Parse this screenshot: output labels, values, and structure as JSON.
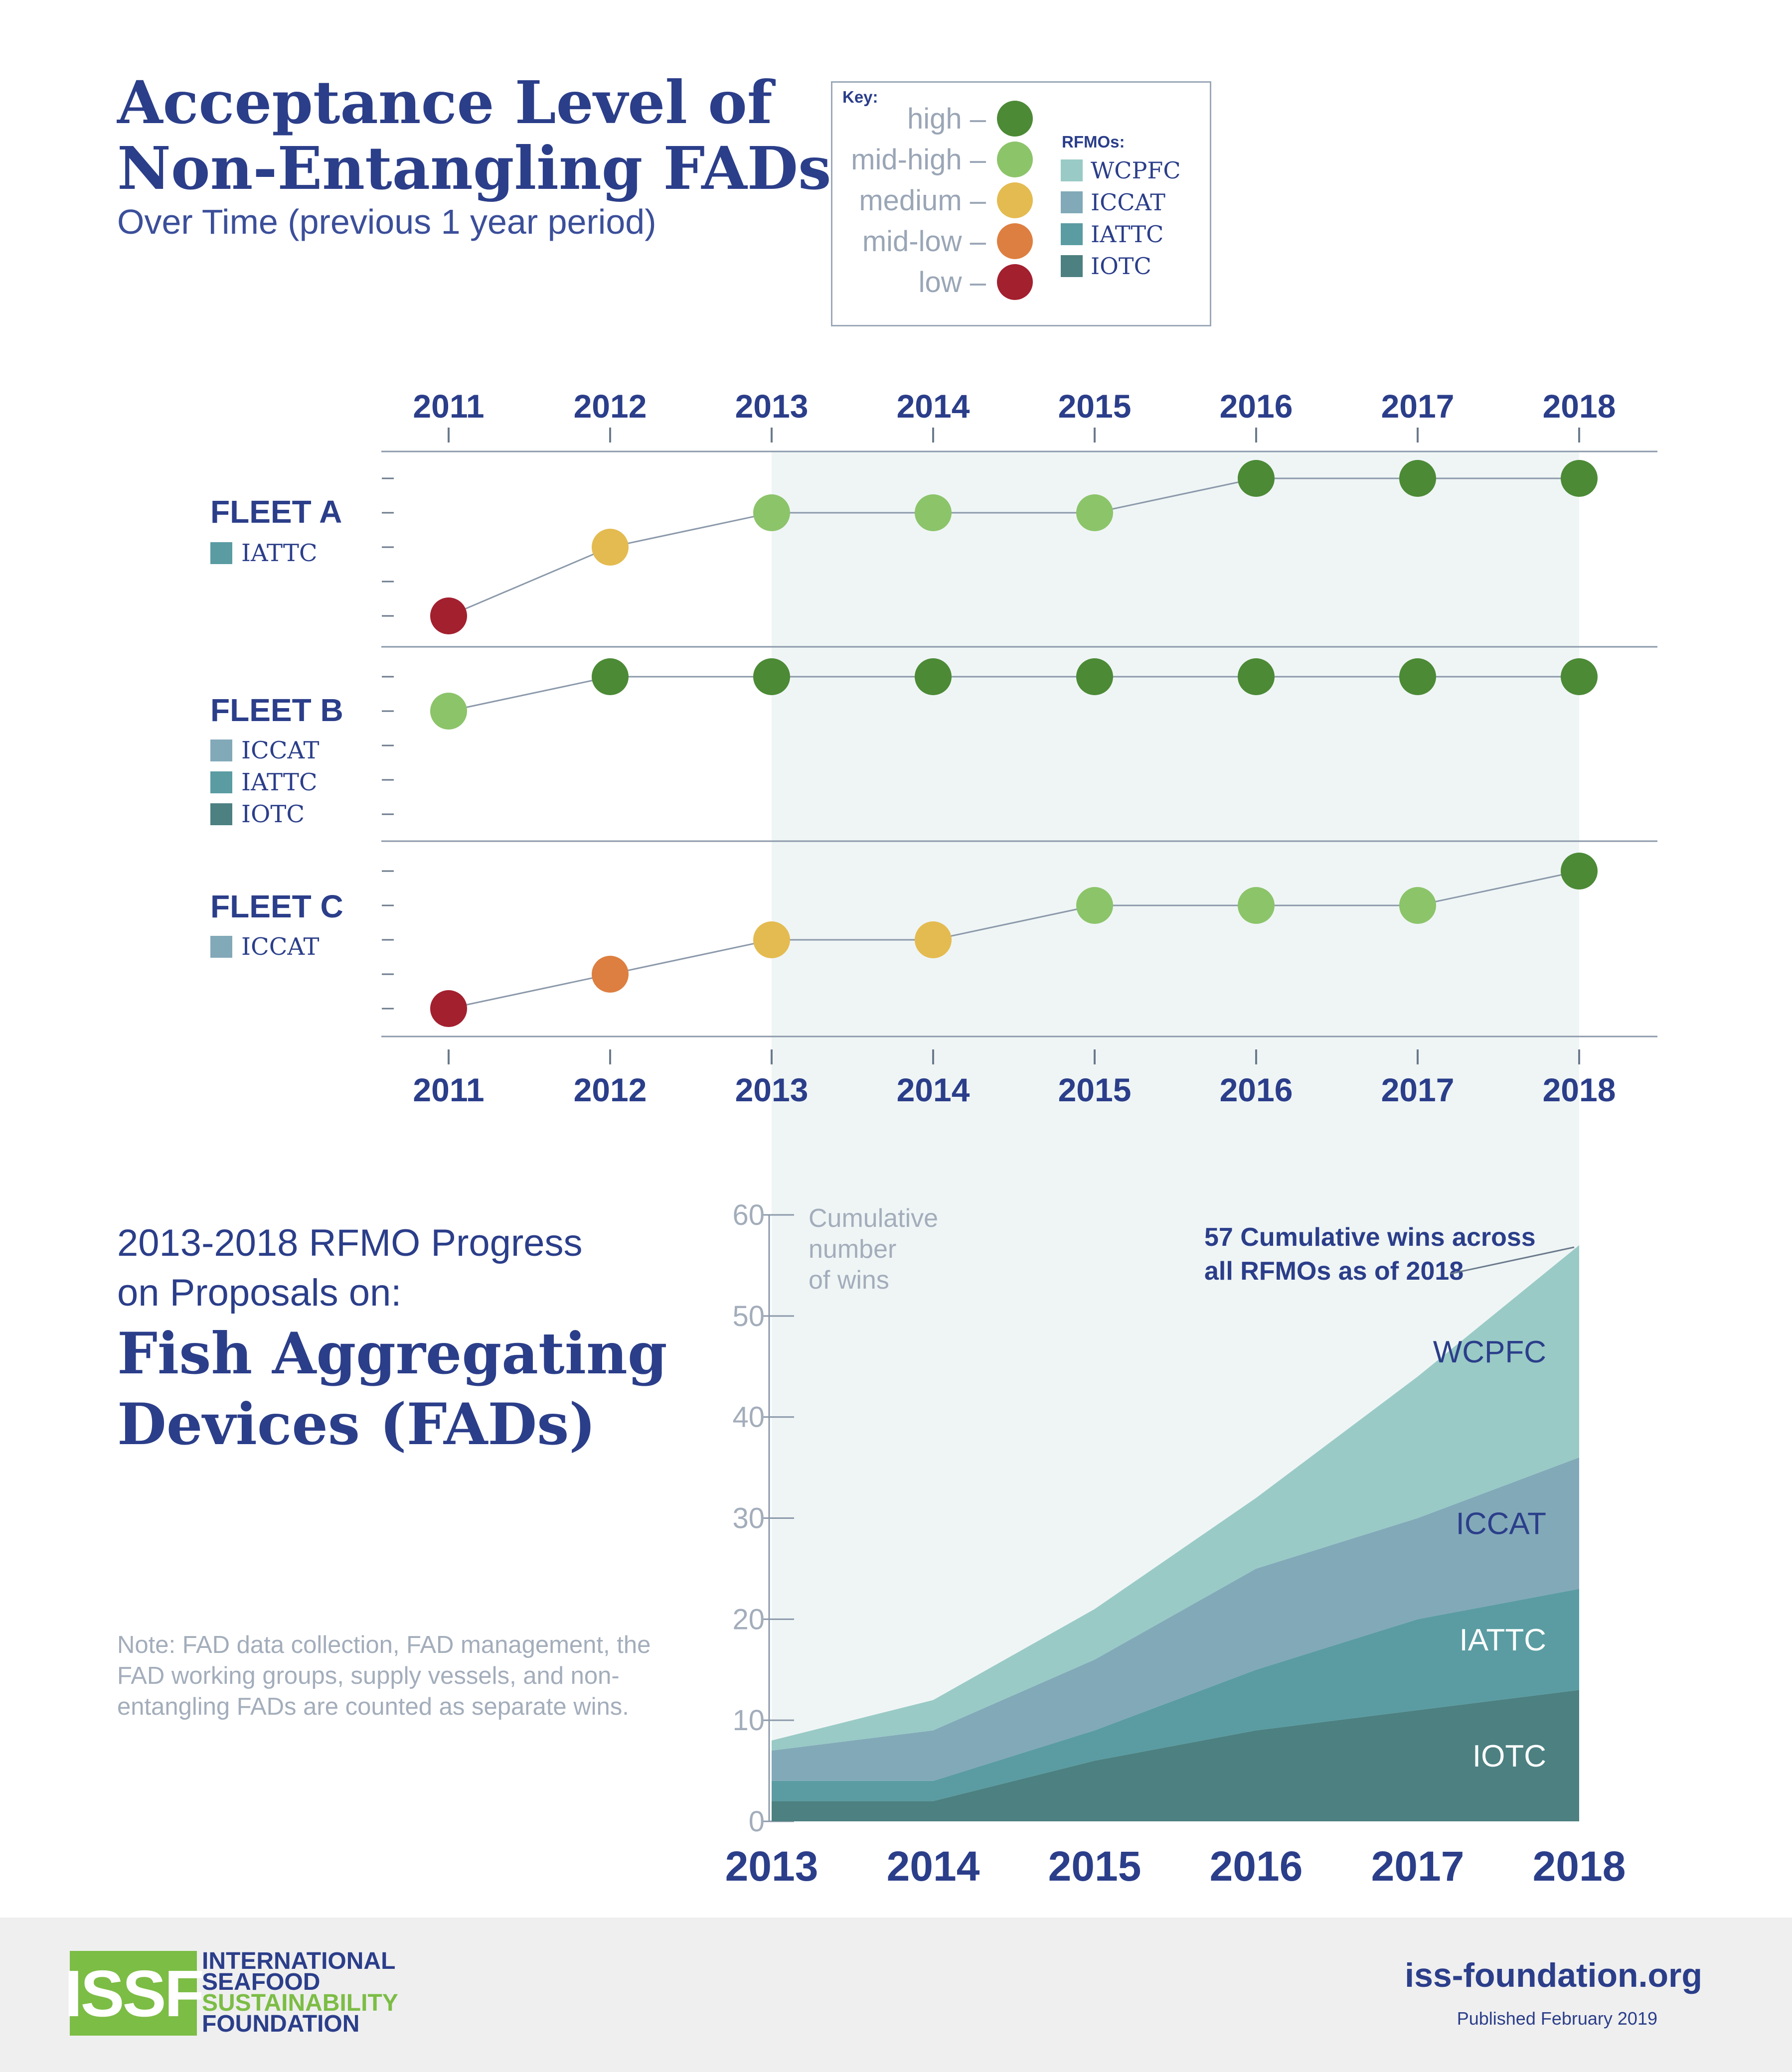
{
  "header": {
    "title_line1": "Acceptance Level of",
    "title_line2": "Non-Entangling FADs",
    "subtitle": "Over Time (previous 1 year period)"
  },
  "key": {
    "title": "Key:",
    "levels": [
      {
        "label": "high –",
        "color": "#4c8a36"
      },
      {
        "label": "mid-high –",
        "color": "#8cc46a"
      },
      {
        "label": "medium –",
        "color": "#e4bb50"
      },
      {
        "label": "mid-low –",
        "color": "#dd7f40"
      },
      {
        "label": "low –",
        "color": "#a3202f"
      }
    ],
    "rfmo_title": "RFMOs:",
    "rfmos": [
      {
        "label": "WCPFC",
        "color": "#99cac6"
      },
      {
        "label": "ICCAT",
        "color": "#82a9b8"
      },
      {
        "label": "IATTC",
        "color": "#5a9ca2"
      },
      {
        "label": "IOTC",
        "color": "#4c8081"
      }
    ]
  },
  "fleets": [
    {
      "name": "FLEET A",
      "rfmos": [
        "IATTC"
      ]
    },
    {
      "name": "FLEET B",
      "rfmos": [
        "ICCAT",
        "IATTC",
        "IOTC"
      ]
    },
    {
      "name": "FLEET C",
      "rfmos": [
        "ICCAT"
      ]
    }
  ],
  "section2": {
    "intro_line1": "2013-2018 RFMO Progress",
    "intro_line2": "on Proposals on:",
    "title_line1": "Fish Aggregating",
    "title_line2": "Devices (FADs)",
    "note": "Note: FAD data collection, FAD management, the FAD working groups, supply vessels, and non-entangling FADs are counted as separate wins."
  },
  "chart_data": [
    {
      "type": "line",
      "x": [
        2011,
        2012,
        2013,
        2014,
        2015,
        2016,
        2017,
        2018
      ],
      "y_levels": [
        "low",
        "mid-low",
        "medium",
        "mid-high",
        "high"
      ],
      "series": [
        {
          "name": "FLEET A",
          "values": [
            "low",
            "medium",
            "mid-high",
            "mid-high",
            "mid-high",
            "high",
            "high",
            "high"
          ]
        },
        {
          "name": "FLEET B",
          "values": [
            "mid-high",
            "high",
            "high",
            "high",
            "high",
            "high",
            "high",
            "high"
          ]
        },
        {
          "name": "FLEET C",
          "values": [
            "low",
            "mid-low",
            "medium",
            "medium",
            "mid-high",
            "mid-high",
            "mid-high",
            "high"
          ]
        }
      ],
      "highlight_range": [
        2013,
        2018
      ]
    },
    {
      "type": "area",
      "stacked": true,
      "x": [
        2013,
        2014,
        2015,
        2016,
        2017,
        2018
      ],
      "ylabel": "Cumulative number of wins",
      "ylim": [
        0,
        60
      ],
      "yticks": [
        0,
        10,
        20,
        30,
        40,
        50,
        60
      ],
      "series": [
        {
          "name": "IOTC",
          "values": [
            2,
            2,
            6,
            9,
            11,
            13
          ],
          "color": "#4c8081"
        },
        {
          "name": "IATTC",
          "values": [
            2,
            2,
            3,
            6,
            9,
            10
          ],
          "color": "#5a9ca2"
        },
        {
          "name": "ICCAT",
          "values": [
            3,
            5,
            7,
            10,
            10,
            13
          ],
          "color": "#82a9b8"
        },
        {
          "name": "WCPFC",
          "values": [
            1,
            3,
            5,
            7,
            14,
            21
          ],
          "color": "#99cac6"
        }
      ],
      "annotation_line1": "57 Cumulative wins across",
      "annotation_line2": "all RFMOs as of 2018"
    }
  ],
  "footer": {
    "logo_mark": "ISSF",
    "org_line1": "INTERNATIONAL",
    "org_line2": "SEAFOOD",
    "org_line3": "SUSTAINABILITY",
    "org_line4": "FOUNDATION",
    "url": "iss-foundation.org",
    "published": "Published February 2019"
  }
}
